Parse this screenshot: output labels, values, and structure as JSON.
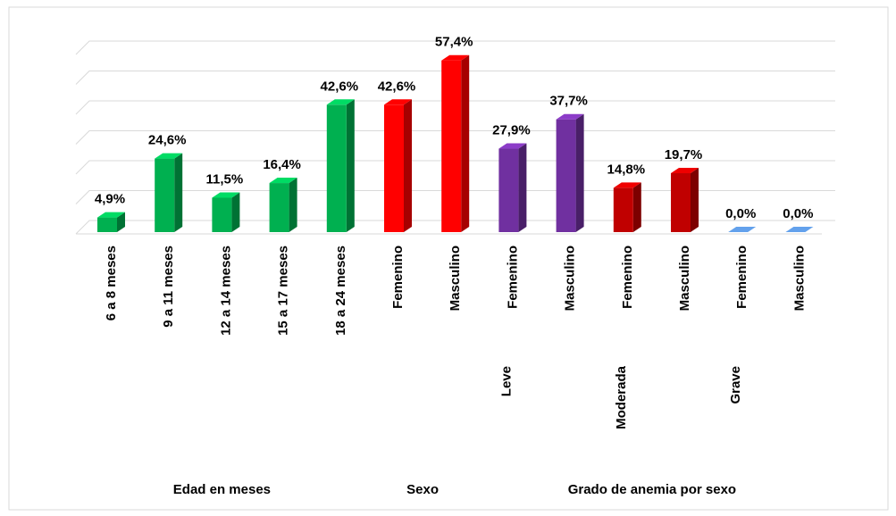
{
  "chart_data": {
    "type": "bar3d",
    "categories": [
      "6 a 8 meses",
      "9 a 11  meses",
      "12 a 14 meses",
      "15 a 17 meses",
      "18 a 24 meses",
      "Femenino",
      "Masculino",
      "Femenino",
      "Masculino",
      "Femenino",
      "Masculino",
      "Femenino",
      "Masculino"
    ],
    "subgroups": [
      null,
      null,
      null,
      null,
      null,
      null,
      null,
      "Leve",
      null,
      "Moderada",
      null,
      "Grave",
      null
    ],
    "groups": [
      "Edad en meses",
      null,
      null,
      null,
      null,
      "Sexo",
      null,
      "Grado de anemia por sexo",
      null,
      null,
      null,
      null,
      null
    ],
    "values": [
      4.9,
      24.6,
      11.5,
      16.4,
      42.6,
      42.6,
      57.4,
      27.9,
      37.7,
      14.8,
      19.7,
      0,
      0
    ],
    "value_labels": [
      "4,9%",
      "24,6%",
      "11,5%",
      "16,4%",
      "42,6%",
      "42,6%",
      "57,4%",
      "27,9%",
      "37,7%",
      "14,8%",
      "19,7%",
      "0,0%",
      "0,0%"
    ],
    "colors": [
      "#00b050",
      "#00b050",
      "#00b050",
      "#00b050",
      "#00b050",
      "#ff0000",
      "#ff0000",
      "#7030a0",
      "#7030a0",
      "#c00000",
      "#c00000",
      "#4f81bd",
      "#4f81bd"
    ],
    "ylim": [
      0,
      60
    ],
    "yticks": [
      0,
      10,
      20,
      30,
      40,
      50,
      60
    ],
    "grid": true
  }
}
